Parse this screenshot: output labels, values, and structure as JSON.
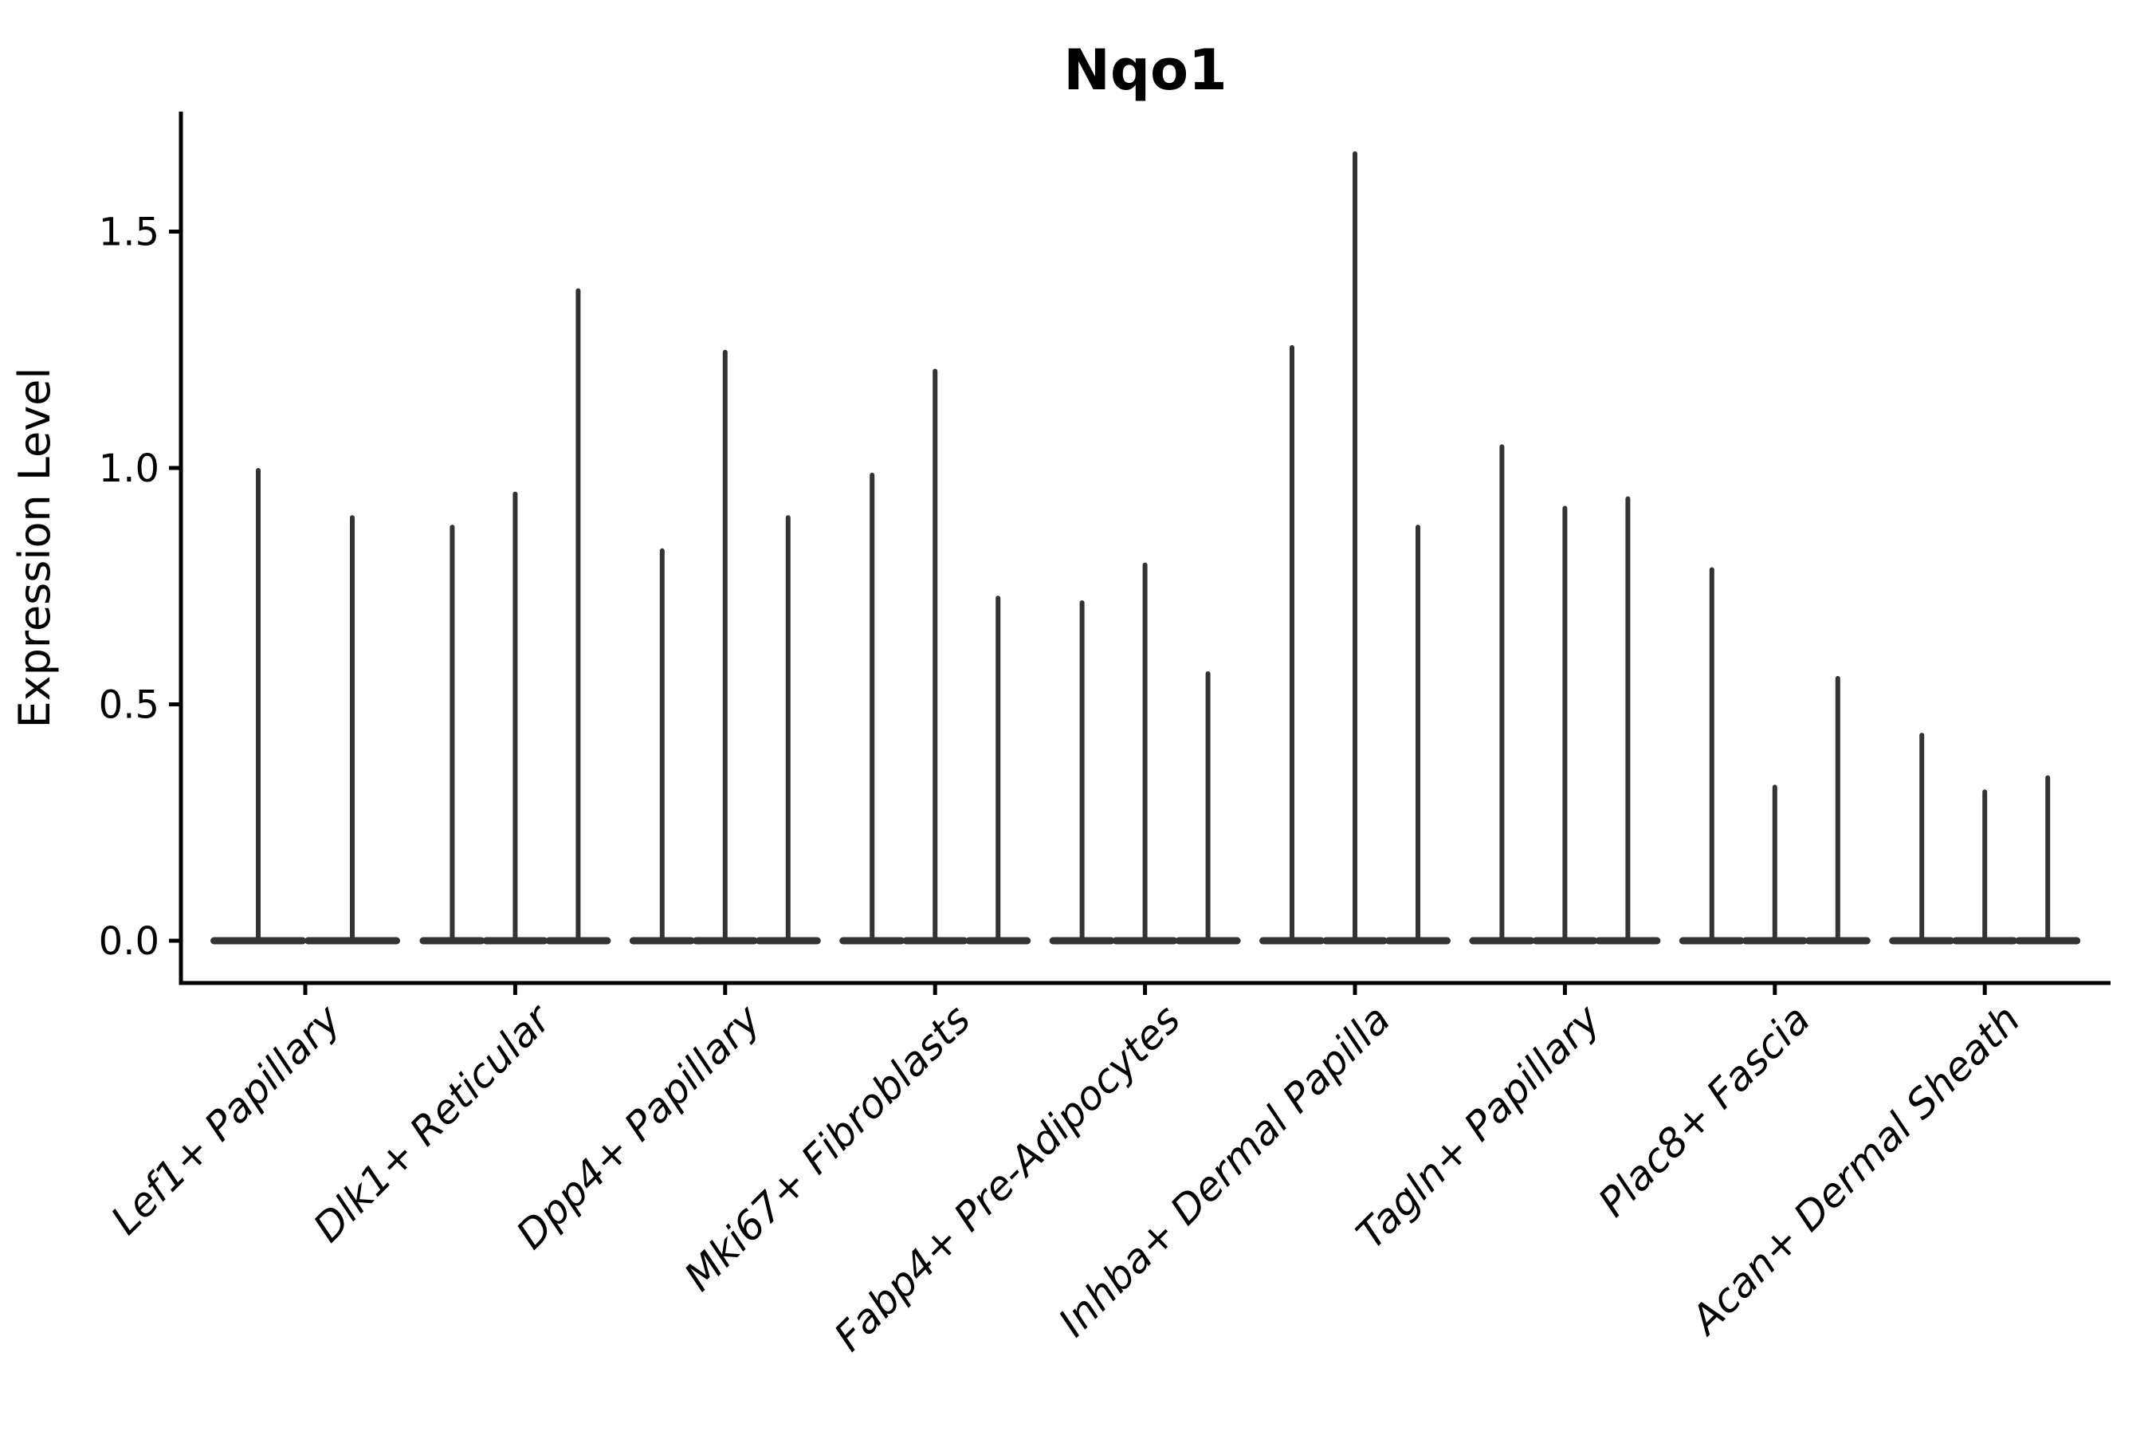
{
  "chart_data": {
    "type": "violin",
    "title": "Nqo1",
    "xlabel": "",
    "ylabel": "Expression Level",
    "ylim": [
      -0.09,
      1.76
    ],
    "yticks": [
      0.0,
      0.5,
      1.0,
      1.5
    ],
    "ytick_labels": [
      "0.0",
      "0.5",
      "1.0",
      "1.5"
    ],
    "grid": false,
    "legend": "none",
    "description": "Violin plot of Nqo1 expression; each category holds thin needle-like violins (bases flattened at 0, spikes to max expression)",
    "categories": [
      "Lef1+ Papillary",
      "Dlk1+ Reticular",
      "Dpp4+ Papillary",
      "Mki67+ Fibroblasts",
      "Fabp4+ Pre-Adipocytes",
      "Inhba+ Dermal Papilla",
      "Tagln+ Papillary",
      "Plac8+ Fascia",
      "Acan+ Dermal Sheath"
    ],
    "groups": [
      {
        "label": "Lef1+ Papillary",
        "violin_max_values": [
          1.0,
          0.9
        ]
      },
      {
        "label": "Dlk1+ Reticular",
        "violin_max_values": [
          0.88,
          0.95,
          1.38
        ]
      },
      {
        "label": "Dpp4+ Papillary",
        "violin_max_values": [
          0.83,
          1.25,
          0.9
        ]
      },
      {
        "label": "Mki67+ Fibroblasts",
        "violin_max_values": [
          0.99,
          1.21,
          0.73
        ]
      },
      {
        "label": "Fabp4+ Pre-Adipocytes",
        "violin_max_values": [
          0.72,
          0.8,
          0.57
        ]
      },
      {
        "label": "Inhba+ Dermal Papilla",
        "violin_max_values": [
          1.26,
          1.67,
          0.88
        ]
      },
      {
        "label": "Tagln+ Papillary",
        "violin_max_values": [
          1.05,
          0.92,
          0.94
        ]
      },
      {
        "label": "Plac8+ Fascia",
        "violin_max_values": [
          0.79,
          0.33,
          0.56
        ]
      },
      {
        "label": "Acan+ Dermal Sheath",
        "violin_max_values": [
          0.44,
          0.32,
          0.35
        ]
      }
    ],
    "colors": {
      "violin": "#333333",
      "axis": "#000000",
      "text": "#000000",
      "background": "#ffffff"
    }
  }
}
